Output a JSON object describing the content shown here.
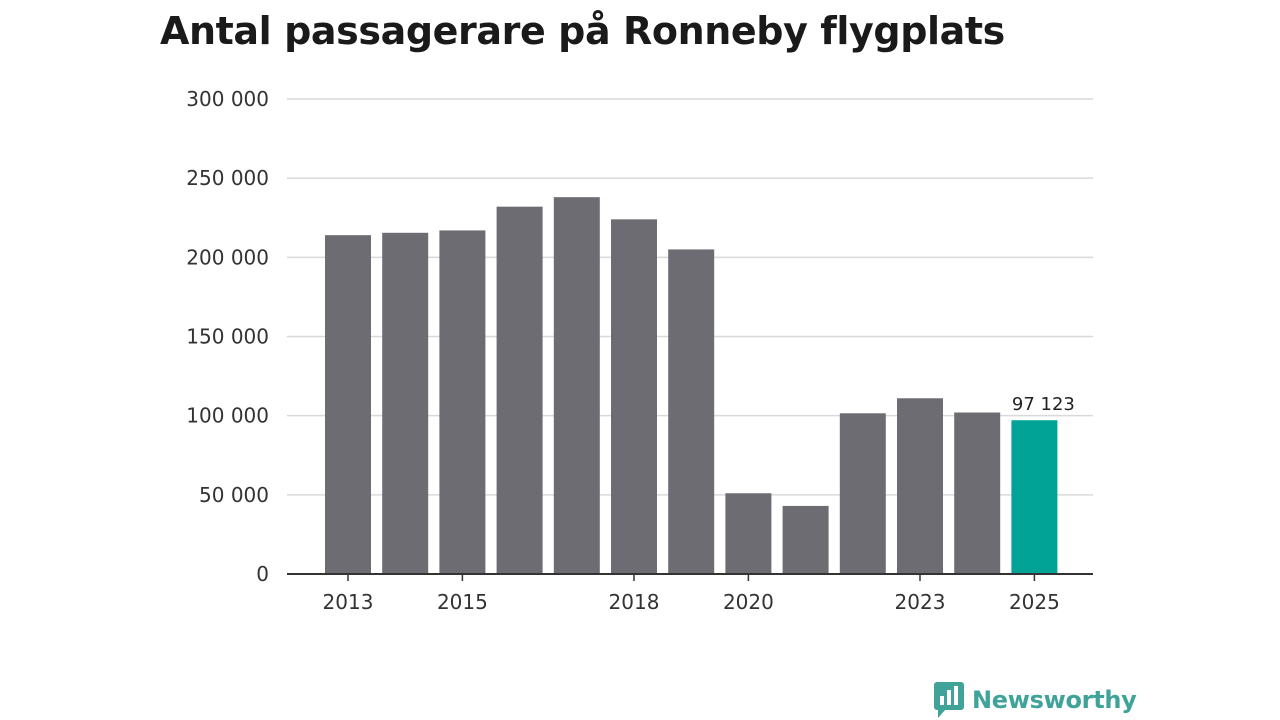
{
  "title": "Antal passagerare på Ronneby flygplats",
  "brand": {
    "name": "Newsworthy",
    "icon": "newsworthy-logo-icon",
    "color": "#3fa39a"
  },
  "colors": {
    "bar": "#6d6c73",
    "highlight": "#00a396",
    "grid": "#d9d9d9",
    "axis": "#333333"
  },
  "chart_data": {
    "type": "bar",
    "title": "Antal passagerare på Ronneby flygplats",
    "xlabel": "",
    "ylabel": "",
    "categories": [
      "2013",
      "2014",
      "2015",
      "2016",
      "2017",
      "2018",
      "2019",
      "2020",
      "2021",
      "2022",
      "2023",
      "2024",
      "2025"
    ],
    "values": [
      214000,
      215500,
      217000,
      232000,
      238000,
      224000,
      205000,
      51000,
      43000,
      101500,
      111000,
      102000,
      97123
    ],
    "ylim": [
      0,
      300000
    ],
    "yticks": [
      0,
      50000,
      100000,
      150000,
      200000,
      250000,
      300000
    ],
    "ytick_labels": [
      "0",
      "50 000",
      "100 000",
      "150 000",
      "200 000",
      "250 000",
      "300 000"
    ],
    "xtick_labels": [
      "2013",
      "2015",
      "2018",
      "2020",
      "2023",
      "2025"
    ],
    "grid": true,
    "highlight": {
      "category": "2025",
      "label": "97 123"
    }
  }
}
